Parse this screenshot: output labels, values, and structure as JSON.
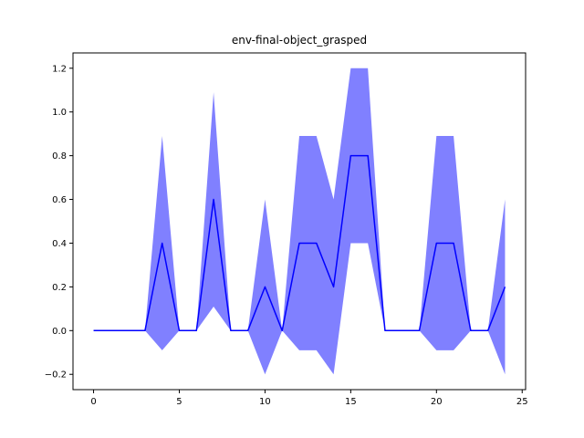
{
  "chart_data": {
    "type": "line",
    "title": "env-final-object_grasped",
    "xlabel": "",
    "ylabel": "",
    "xlim": [
      -1.2,
      25.2
    ],
    "ylim": [
      -0.27,
      1.27
    ],
    "xticks": [
      0,
      5,
      10,
      15,
      20,
      25
    ],
    "yticks": [
      -0.2,
      0.0,
      0.2,
      0.4,
      0.6,
      0.8,
      1.0,
      1.2
    ],
    "ytick_labels": [
      "−0.2",
      "0.0",
      "0.2",
      "0.4",
      "0.6",
      "0.8",
      "1.0",
      "1.2"
    ],
    "grid": false,
    "series": [
      {
        "color": "#0000ff",
        "band_color": "#8080ff",
        "x": [
          0,
          1,
          2,
          3,
          4,
          5,
          6,
          7,
          8,
          9,
          10,
          11,
          12,
          13,
          14,
          15,
          16,
          17,
          18,
          19,
          20,
          21,
          22,
          23,
          24
        ],
        "mean": [
          0,
          0,
          0,
          0,
          0.4,
          0,
          0,
          0.6,
          0,
          0,
          0.2,
          0,
          0.4,
          0.4,
          0.2,
          0.8,
          0.8,
          0,
          0,
          0,
          0.4,
          0.4,
          0,
          0,
          0.2
        ],
        "upper": [
          0,
          0,
          0,
          0,
          0.89,
          0,
          0,
          1.09,
          0,
          0,
          0.6,
          0,
          0.89,
          0.89,
          0.6,
          1.2,
          1.2,
          0,
          0,
          0,
          0.89,
          0.89,
          0,
          0,
          0.6
        ],
        "lower": [
          0,
          0,
          0,
          0,
          -0.09,
          0,
          0,
          0.11,
          0,
          0,
          -0.2,
          0,
          -0.09,
          -0.09,
          -0.2,
          0.4,
          0.4,
          0,
          0,
          0,
          -0.09,
          -0.09,
          0,
          0,
          -0.2
        ]
      }
    ]
  }
}
